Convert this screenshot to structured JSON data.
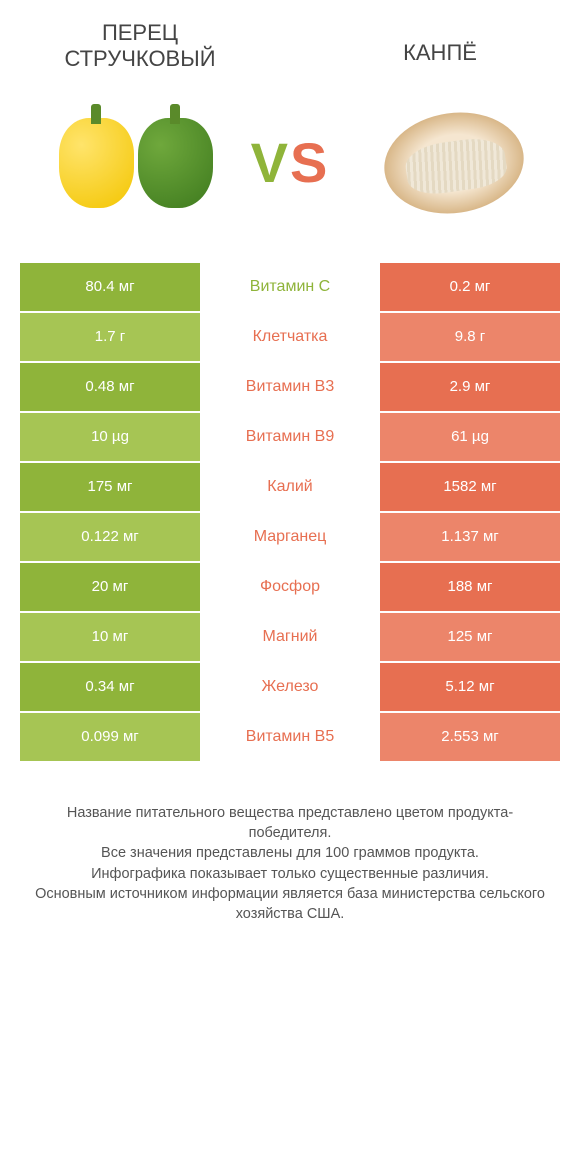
{
  "titles": {
    "left": "ПЕРЕЦ\nСТРУЧКОВЫЙ",
    "right": "КАНПЁ"
  },
  "vs": {
    "v": "V",
    "s": "S"
  },
  "colors": {
    "green_dark": "#8fb43a",
    "green_light": "#a6c554",
    "orange_dark": "#e76f51",
    "orange_light": "#ec856a",
    "mid_text_green": "#8fb43a",
    "mid_text_orange": "#e76f51",
    "white": "#ffffff"
  },
  "rows": [
    {
      "left": "80.4 мг",
      "mid": "Витамин C",
      "right": "0.2 мг",
      "winner": "left"
    },
    {
      "left": "1.7 г",
      "mid": "Клетчатка",
      "right": "9.8 г",
      "winner": "right"
    },
    {
      "left": "0.48 мг",
      "mid": "Витамин B3",
      "right": "2.9 мг",
      "winner": "right"
    },
    {
      "left": "10 µg",
      "mid": "Витамин B9",
      "right": "61 µg",
      "winner": "right"
    },
    {
      "left": "175 мг",
      "mid": "Калий",
      "right": "1582 мг",
      "winner": "right"
    },
    {
      "left": "0.122 мг",
      "mid": "Марганец",
      "right": "1.137 мг",
      "winner": "right"
    },
    {
      "left": "20 мг",
      "mid": "Фосфор",
      "right": "188 мг",
      "winner": "right"
    },
    {
      "left": "10 мг",
      "mid": "Магний",
      "right": "125 мг",
      "winner": "right"
    },
    {
      "left": "0.34 мг",
      "mid": "Железо",
      "right": "5.12 мг",
      "winner": "right"
    },
    {
      "left": "0.099 мг",
      "mid": "Витамин B5",
      "right": "2.553 мг",
      "winner": "right"
    }
  ],
  "footer": {
    "l1": "Название питательного вещества представлено цветом продукта-победителя.",
    "l2": "Все значения представлены для 100 граммов продукта.",
    "l3": "Инфографика показывает только существенные различия.",
    "l4": "Основным источником информации является база министерства сельского хозяйства США."
  }
}
